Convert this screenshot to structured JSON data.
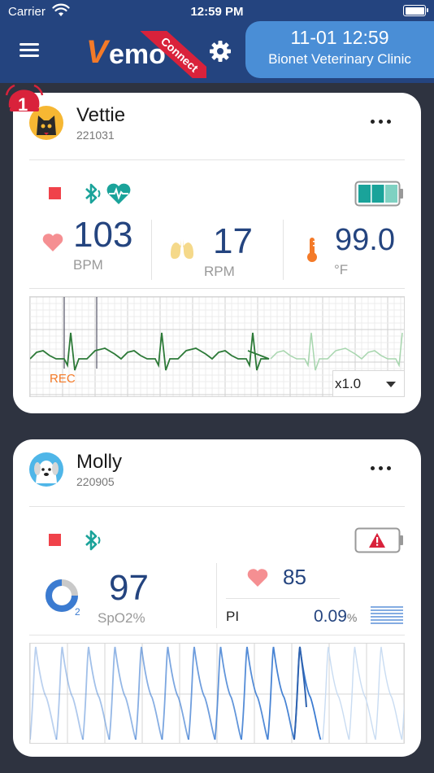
{
  "status_bar": {
    "carrier": "Carrier",
    "time": "12:59 PM"
  },
  "header": {
    "logo_v": "V",
    "logo_emo": "emo",
    "ribbon": "Connect",
    "datetime": "11-01 12:59",
    "clinic": "Bionet Veterinary Clinic"
  },
  "colors": {
    "header_bg": "#24447f",
    "accent_orange": "#f47a28",
    "stop_red": "#f0424a",
    "bt_green": "#1aa39a",
    "value_blue": "#24447f",
    "ecg_green": "#2d7a38"
  },
  "patients": [
    {
      "name": "Vettie",
      "id": "221031",
      "alarm_count": "1",
      "icons": [
        "stop-icon",
        "bluetooth-icon",
        "heart-pulse-icon",
        "battery-full-icon"
      ],
      "heart_rate": {
        "value": "103",
        "unit": "BPM"
      },
      "resp_rate": {
        "value": "17",
        "unit": "RPM"
      },
      "temperature": {
        "value": "99.0",
        "unit": "°F"
      },
      "waveform": {
        "label": "REC",
        "speed": "x1.0"
      },
      "battery_level": 1.0
    },
    {
      "name": "Molly",
      "id": "220905",
      "icons": [
        "stop-icon",
        "bluetooth-icon",
        "battery-warning-icon"
      ],
      "spo2": {
        "value": "97",
        "unit": "SpO2%"
      },
      "pulse": {
        "value": "85"
      },
      "pi": {
        "label": "PI",
        "value": "0.09",
        "unit": "%"
      }
    }
  ]
}
